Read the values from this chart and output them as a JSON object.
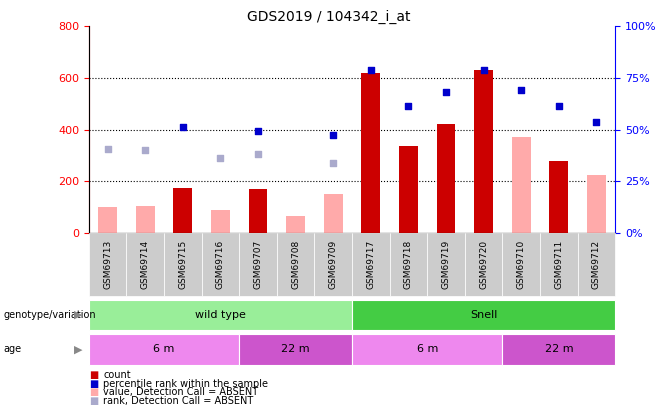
{
  "title": "GDS2019 / 104342_i_at",
  "samples": [
    "GSM69713",
    "GSM69714",
    "GSM69715",
    "GSM69716",
    "GSM69707",
    "GSM69708",
    "GSM69709",
    "GSM69717",
    "GSM69718",
    "GSM69719",
    "GSM69720",
    "GSM69710",
    "GSM69711",
    "GSM69712"
  ],
  "count_values": [
    null,
    null,
    175,
    null,
    170,
    null,
    null,
    620,
    335,
    420,
    630,
    null,
    280,
    null
  ],
  "count_absent_values": [
    100,
    105,
    null,
    90,
    null,
    65,
    150,
    null,
    null,
    null,
    null,
    370,
    null,
    225
  ],
  "percentile_values_left": [
    null,
    null,
    410,
    null,
    395,
    null,
    380,
    630,
    490,
    545,
    630,
    555,
    490,
    430
  ],
  "rank_absent_values_left": [
    325,
    320,
    null,
    290,
    305,
    null,
    270,
    null,
    null,
    null,
    null,
    null,
    null,
    null
  ],
  "ylim_left": [
    0,
    800
  ],
  "ylim_right": [
    0,
    100
  ],
  "yticks_left": [
    0,
    200,
    400,
    600,
    800
  ],
  "yticks_right": [
    0,
    25,
    50,
    75,
    100
  ],
  "color_count": "#cc0000",
  "color_count_absent": "#ffaaaa",
  "color_percentile": "#0000cc",
  "color_rank_absent": "#aaaacc",
  "genotype_variation": [
    {
      "label": "wild type",
      "start": 0,
      "end": 7,
      "color": "#99ee99"
    },
    {
      "label": "Snell",
      "start": 7,
      "end": 14,
      "color": "#44cc44"
    }
  ],
  "age": [
    {
      "label": "6 m",
      "start": 0,
      "end": 4,
      "color": "#ee88ee"
    },
    {
      "label": "22 m",
      "start": 4,
      "end": 7,
      "color": "#cc55cc"
    },
    {
      "label": "6 m",
      "start": 7,
      "end": 11,
      "color": "#ee88ee"
    },
    {
      "label": "22 m",
      "start": 11,
      "end": 14,
      "color": "#cc55cc"
    }
  ],
  "legend_items": [
    {
      "label": "count",
      "color": "#cc0000"
    },
    {
      "label": "percentile rank within the sample",
      "color": "#0000cc"
    },
    {
      "label": "value, Detection Call = ABSENT",
      "color": "#ffaaaa"
    },
    {
      "label": "rank, Detection Call = ABSENT",
      "color": "#aaaacc"
    }
  ],
  "arrow_color": "#888888",
  "bg_xtick": "#cccccc",
  "bar_width": 0.5
}
